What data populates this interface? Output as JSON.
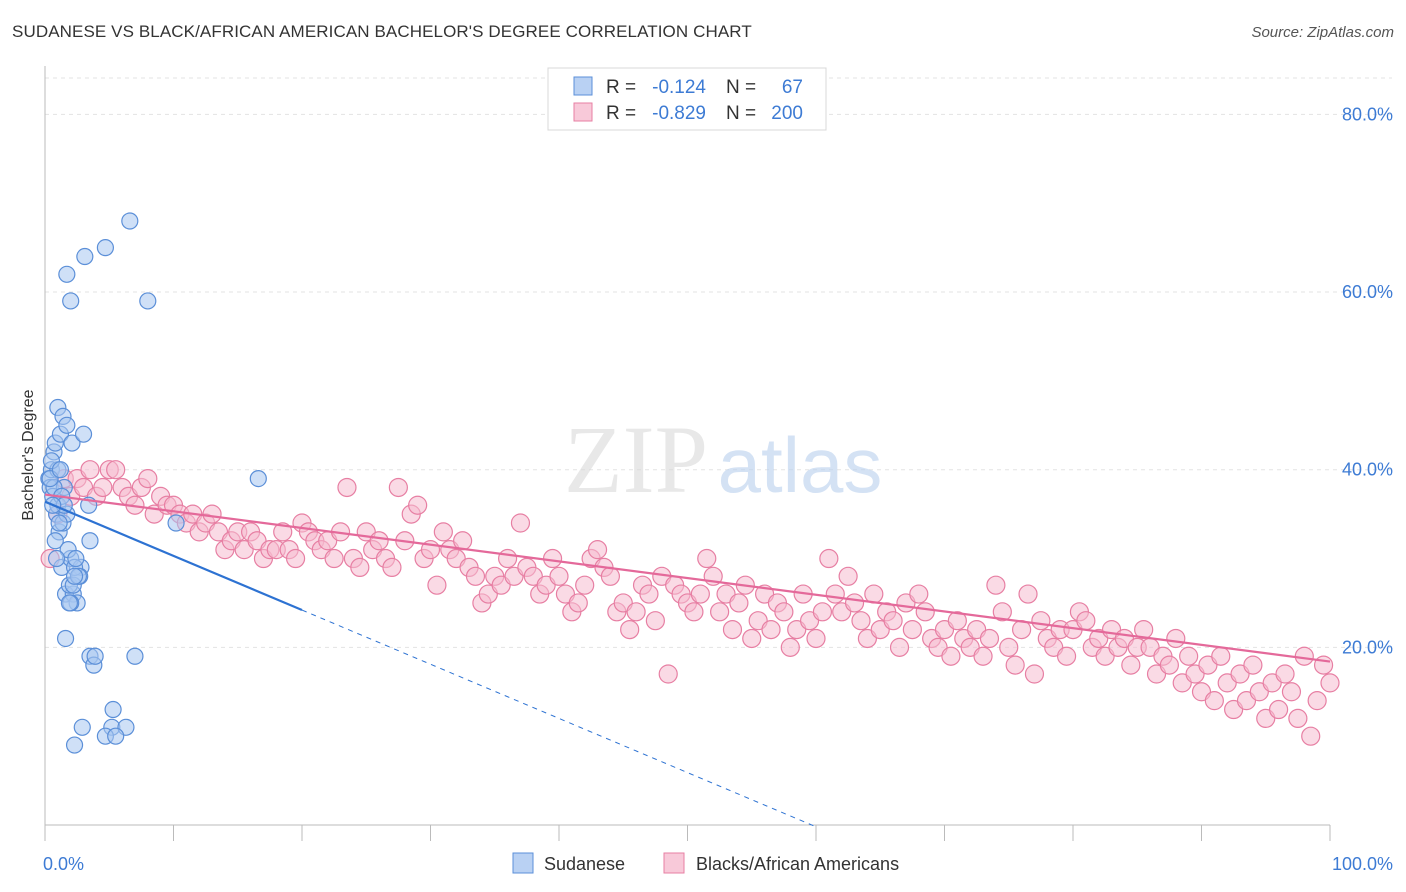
{
  "title": "SUDANESE VS BLACK/AFRICAN AMERICAN BACHELOR'S DEGREE CORRELATION CHART",
  "source": "Source: ZipAtlas.com",
  "watermark": {
    "zip": "ZIP",
    "atlas": "atlas"
  },
  "chart_data": {
    "type": "scatter",
    "ylabel": "Bachelor's Degree",
    "xlim": [
      0,
      100
    ],
    "ylim": [
      0,
      85
    ],
    "x_tick_labels": [
      {
        "value": 0,
        "label": "0.0%"
      },
      {
        "value": 100,
        "label": "100.0%"
      }
    ],
    "y_tick_labels": [
      {
        "value": 20,
        "label": "20.0%"
      },
      {
        "value": 40,
        "label": "40.0%"
      },
      {
        "value": 60,
        "label": "60.0%"
      },
      {
        "value": 80,
        "label": "80.0%"
      }
    ],
    "legend": {
      "position": "top-center",
      "rows": [
        {
          "r_label": "R =",
          "r_value": "-0.124",
          "n_label": "N =",
          "n_value": "67"
        },
        {
          "r_label": "R =",
          "r_value": "-0.829",
          "n_label": "N =",
          "n_value": "200"
        }
      ]
    },
    "series": [
      {
        "name": "Sudanese",
        "color": "#5b8fd8",
        "fill": "#a8c6f0",
        "line_color": "#2d72d2",
        "trend": {
          "x0": 0,
          "y0": 36.4,
          "x1": 20,
          "y1": 24.2,
          "dash_to_x": 60
        },
        "points": [
          [
            0.3,
            39
          ],
          [
            0.5,
            40
          ],
          [
            0.4,
            38
          ],
          [
            0.7,
            42
          ],
          [
            0.8,
            43
          ],
          [
            1.0,
            40
          ],
          [
            0.6,
            37
          ],
          [
            1.2,
            44
          ],
          [
            0.9,
            35
          ],
          [
            1.5,
            38
          ],
          [
            1.1,
            33
          ],
          [
            0.8,
            32
          ],
          [
            1.3,
            29
          ],
          [
            1.6,
            26
          ],
          [
            2.0,
            30
          ],
          [
            2.2,
            26
          ],
          [
            2.8,
            29
          ],
          [
            2.5,
            25
          ],
          [
            1.8,
            31
          ],
          [
            1.4,
            34
          ],
          [
            2.1,
            43
          ],
          [
            3.0,
            44
          ],
          [
            1.0,
            47
          ],
          [
            1.4,
            46
          ],
          [
            1.7,
            45
          ],
          [
            0.5,
            41
          ],
          [
            3.4,
            36
          ],
          [
            3.5,
            32
          ],
          [
            1.9,
            27
          ],
          [
            2.7,
            28
          ],
          [
            2.3,
            29
          ],
          [
            1.6,
            21
          ],
          [
            3.5,
            19
          ],
          [
            3.8,
            18
          ],
          [
            7.0,
            19
          ],
          [
            3.9,
            19
          ],
          [
            5.3,
            13
          ],
          [
            5.2,
            11
          ],
          [
            6.3,
            11
          ],
          [
            2.9,
            11
          ],
          [
            4.7,
            10
          ],
          [
            5.5,
            10
          ],
          [
            2.3,
            9
          ],
          [
            16.6,
            39
          ],
          [
            10.2,
            34
          ],
          [
            1.7,
            62
          ],
          [
            2.0,
            59
          ],
          [
            3.1,
            64
          ],
          [
            4.7,
            65
          ],
          [
            6.6,
            68
          ],
          [
            8.0,
            59
          ],
          [
            1.0,
            36
          ],
          [
            0.7,
            38
          ],
          [
            0.4,
            39
          ],
          [
            1.3,
            37
          ],
          [
            1.7,
            35
          ],
          [
            2.4,
            30
          ],
          [
            2.0,
            25
          ],
          [
            2.2,
            27
          ],
          [
            1.1,
            34
          ],
          [
            0.9,
            30
          ],
          [
            1.5,
            36
          ],
          [
            0.6,
            36
          ],
          [
            2.6,
            28
          ],
          [
            1.9,
            25
          ],
          [
            1.2,
            40
          ],
          [
            2.3,
            28
          ]
        ]
      },
      {
        "name": "Blacks/African Americans",
        "color": "#e77fa3",
        "fill": "#f6bcd0",
        "line_color": "#e4699a",
        "trend": {
          "x0": 0,
          "y0": 37.2,
          "x1": 100,
          "y1": 18.4
        },
        "points": [
          [
            0.4,
            30
          ],
          [
            1,
            35
          ],
          [
            1.5,
            39
          ],
          [
            2,
            37
          ],
          [
            2.5,
            39
          ],
          [
            3,
            38
          ],
          [
            3.5,
            40
          ],
          [
            4,
            37
          ],
          [
            4.5,
            38
          ],
          [
            5,
            40
          ],
          [
            5.5,
            40
          ],
          [
            6,
            38
          ],
          [
            6.5,
            37
          ],
          [
            7,
            36
          ],
          [
            7.5,
            38
          ],
          [
            8,
            39
          ],
          [
            8.5,
            35
          ],
          [
            9,
            37
          ],
          [
            9.5,
            36
          ],
          [
            10,
            36
          ],
          [
            10.5,
            35
          ],
          [
            11,
            34
          ],
          [
            11.5,
            35
          ],
          [
            12,
            33
          ],
          [
            12.5,
            34
          ],
          [
            13,
            35
          ],
          [
            13.5,
            33
          ],
          [
            14,
            31
          ],
          [
            14.5,
            32
          ],
          [
            15,
            33
          ],
          [
            15.5,
            31
          ],
          [
            16,
            33
          ],
          [
            16.5,
            32
          ],
          [
            17,
            30
          ],
          [
            17.5,
            31
          ],
          [
            18,
            31
          ],
          [
            18.5,
            33
          ],
          [
            19,
            31
          ],
          [
            19.5,
            30
          ],
          [
            20,
            34
          ],
          [
            20.5,
            33
          ],
          [
            21,
            32
          ],
          [
            21.5,
            31
          ],
          [
            22,
            32
          ],
          [
            22.5,
            30
          ],
          [
            23,
            33
          ],
          [
            23.5,
            38
          ],
          [
            24,
            30
          ],
          [
            24.5,
            29
          ],
          [
            25,
            33
          ],
          [
            25.5,
            31
          ],
          [
            26,
            32
          ],
          [
            26.5,
            30
          ],
          [
            27,
            29
          ],
          [
            27.5,
            38
          ],
          [
            28,
            32
          ],
          [
            28.5,
            35
          ],
          [
            29,
            36
          ],
          [
            29.5,
            30
          ],
          [
            30,
            31
          ],
          [
            30.5,
            27
          ],
          [
            31,
            33
          ],
          [
            31.5,
            31
          ],
          [
            32,
            30
          ],
          [
            32.5,
            32
          ],
          [
            33,
            29
          ],
          [
            33.5,
            28
          ],
          [
            34,
            25
          ],
          [
            34.5,
            26
          ],
          [
            35,
            28
          ],
          [
            35.5,
            27
          ],
          [
            36,
            30
          ],
          [
            36.5,
            28
          ],
          [
            37,
            34
          ],
          [
            37.5,
            29
          ],
          [
            38,
            28
          ],
          [
            38.5,
            26
          ],
          [
            39,
            27
          ],
          [
            39.5,
            30
          ],
          [
            40,
            28
          ],
          [
            40.5,
            26
          ],
          [
            41,
            24
          ],
          [
            41.5,
            25
          ],
          [
            42,
            27
          ],
          [
            42.5,
            30
          ],
          [
            43,
            31
          ],
          [
            43.5,
            29
          ],
          [
            44,
            28
          ],
          [
            44.5,
            24
          ],
          [
            45,
            25
          ],
          [
            45.5,
            22
          ],
          [
            46,
            24
          ],
          [
            46.5,
            27
          ],
          [
            47,
            26
          ],
          [
            47.5,
            23
          ],
          [
            48,
            28
          ],
          [
            48.5,
            17
          ],
          [
            49,
            27
          ],
          [
            49.5,
            26
          ],
          [
            50,
            25
          ],
          [
            50.5,
            24
          ],
          [
            51,
            26
          ],
          [
            51.5,
            30
          ],
          [
            52,
            28
          ],
          [
            52.5,
            24
          ],
          [
            53,
            26
          ],
          [
            53.5,
            22
          ],
          [
            54,
            25
          ],
          [
            54.5,
            27
          ],
          [
            55,
            21
          ],
          [
            55.5,
            23
          ],
          [
            56,
            26
          ],
          [
            56.5,
            22
          ],
          [
            57,
            25
          ],
          [
            57.5,
            24
          ],
          [
            58,
            20
          ],
          [
            58.5,
            22
          ],
          [
            59,
            26
          ],
          [
            59.5,
            23
          ],
          [
            60,
            21
          ],
          [
            60.5,
            24
          ],
          [
            61,
            30
          ],
          [
            61.5,
            26
          ],
          [
            62,
            24
          ],
          [
            62.5,
            28
          ],
          [
            63,
            25
          ],
          [
            63.5,
            23
          ],
          [
            64,
            21
          ],
          [
            64.5,
            26
          ],
          [
            65,
            22
          ],
          [
            65.5,
            24
          ],
          [
            66,
            23
          ],
          [
            66.5,
            20
          ],
          [
            67,
            25
          ],
          [
            67.5,
            22
          ],
          [
            68,
            26
          ],
          [
            68.5,
            24
          ],
          [
            69,
            21
          ],
          [
            69.5,
            20
          ],
          [
            70,
            22
          ],
          [
            70.5,
            19
          ],
          [
            71,
            23
          ],
          [
            71.5,
            21
          ],
          [
            72,
            20
          ],
          [
            72.5,
            22
          ],
          [
            73,
            19
          ],
          [
            73.5,
            21
          ],
          [
            74,
            27
          ],
          [
            74.5,
            24
          ],
          [
            75,
            20
          ],
          [
            75.5,
            18
          ],
          [
            76,
            22
          ],
          [
            76.5,
            26
          ],
          [
            77,
            17
          ],
          [
            77.5,
            23
          ],
          [
            78,
            21
          ],
          [
            78.5,
            20
          ],
          [
            79,
            22
          ],
          [
            79.5,
            19
          ],
          [
            80,
            22
          ],
          [
            80.5,
            24
          ],
          [
            81,
            23
          ],
          [
            81.5,
            20
          ],
          [
            82,
            21
          ],
          [
            82.5,
            19
          ],
          [
            83,
            22
          ],
          [
            83.5,
            20
          ],
          [
            84,
            21
          ],
          [
            84.5,
            18
          ],
          [
            85,
            20
          ],
          [
            85.5,
            22
          ],
          [
            86,
            20
          ],
          [
            86.5,
            17
          ],
          [
            87,
            19
          ],
          [
            87.5,
            18
          ],
          [
            88,
            21
          ],
          [
            88.5,
            16
          ],
          [
            89,
            19
          ],
          [
            89.5,
            17
          ],
          [
            90,
            15
          ],
          [
            90.5,
            18
          ],
          [
            91,
            14
          ],
          [
            91.5,
            19
          ],
          [
            92,
            16
          ],
          [
            92.5,
            13
          ],
          [
            93,
            17
          ],
          [
            93.5,
            14
          ],
          [
            94,
            18
          ],
          [
            94.5,
            15
          ],
          [
            95,
            12
          ],
          [
            95.5,
            16
          ],
          [
            96,
            13
          ],
          [
            96.5,
            17
          ],
          [
            97,
            15
          ],
          [
            97.5,
            12
          ],
          [
            98,
            19
          ],
          [
            98.5,
            10
          ],
          [
            99,
            14
          ],
          [
            99.5,
            18
          ],
          [
            100,
            16
          ]
        ]
      }
    ]
  }
}
